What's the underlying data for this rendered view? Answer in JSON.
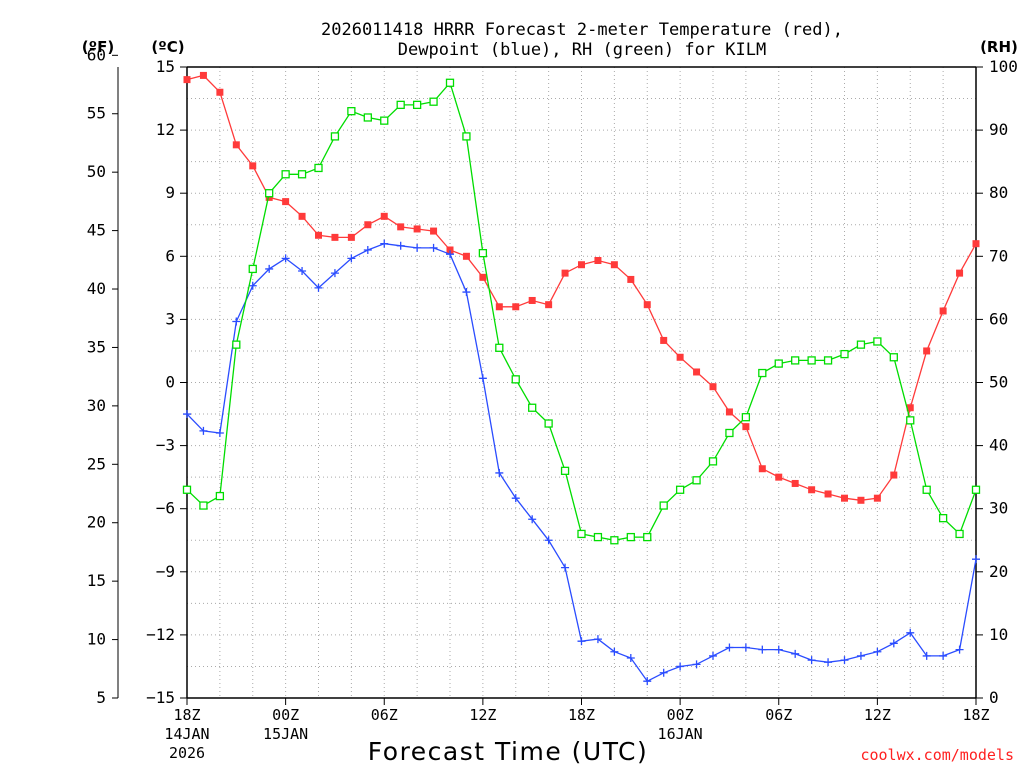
{
  "chart_data": {
    "type": "line",
    "title_line1": "2026011418 HRRR Forecast 2-meter Temperature (red),",
    "title_line2": "Dewpoint (blue), RH (green) for KILM",
    "xlabel": "Forecast Time (UTC)",
    "left_axis_f_label": "(ºF)",
    "left_axis_c_label": "(ºC)",
    "right_axis_label": "(RH)",
    "watermark": "coolwx.com/models",
    "colors": {
      "temperature": "#ff3a3a",
      "dewpoint": "#2a4cff",
      "rh": "#00dd00",
      "grid": "#aaaaaa",
      "axis": "#000000",
      "watermark": "#ff2020"
    },
    "xlim": [
      0,
      48
    ],
    "x_ticks": [
      {
        "x": 0,
        "label": "18Z",
        "sub1": "14JAN",
        "sub2": "2026"
      },
      {
        "x": 6,
        "label": "00Z",
        "sub1": "15JAN",
        "sub2": ""
      },
      {
        "x": 12,
        "label": "06Z",
        "sub1": "",
        "sub2": ""
      },
      {
        "x": 18,
        "label": "12Z",
        "sub1": "",
        "sub2": ""
      },
      {
        "x": 24,
        "label": "18Z",
        "sub1": "",
        "sub2": ""
      },
      {
        "x": 30,
        "label": "00Z",
        "sub1": "16JAN",
        "sub2": ""
      },
      {
        "x": 36,
        "label": "06Z",
        "sub1": "",
        "sub2": ""
      },
      {
        "x": 42,
        "label": "12Z",
        "sub1": "",
        "sub2": ""
      },
      {
        "x": 48,
        "label": "18Z",
        "sub1": "",
        "sub2": ""
      }
    ],
    "ylim_c": [
      -15,
      15
    ],
    "y_ticks_c": [
      {
        "v": 15,
        "label": "15"
      },
      {
        "v": 12,
        "label": "12"
      },
      {
        "v": 9,
        "label": "9"
      },
      {
        "v": 6,
        "label": "6"
      },
      {
        "v": 3,
        "label": "3"
      },
      {
        "v": 0,
        "label": "0"
      },
      {
        "v": -3,
        "label": "−3"
      },
      {
        "v": -6,
        "label": "−6"
      },
      {
        "v": -9,
        "label": "−9"
      },
      {
        "v": -12,
        "label": "−12"
      },
      {
        "v": -15,
        "label": "−15"
      }
    ],
    "y_ticks_f": [
      {
        "v": 60,
        "label": "60"
      },
      {
        "v": 55,
        "label": "55"
      },
      {
        "v": 50,
        "label": "50"
      },
      {
        "v": 45,
        "label": "45"
      },
      {
        "v": 40,
        "label": "40"
      },
      {
        "v": 35,
        "label": "35"
      },
      {
        "v": 30,
        "label": "30"
      },
      {
        "v": 25,
        "label": "25"
      },
      {
        "v": 20,
        "label": "20"
      },
      {
        "v": 15,
        "label": "15"
      },
      {
        "v": 10,
        "label": "10"
      },
      {
        "v": 5,
        "label": "5"
      }
    ],
    "ylim_rh": [
      0,
      100
    ],
    "y_ticks_rh": [
      {
        "v": 100,
        "label": "100"
      },
      {
        "v": 90,
        "label": "90"
      },
      {
        "v": 80,
        "label": "80"
      },
      {
        "v": 70,
        "label": "70"
      },
      {
        "v": 60,
        "label": "60"
      },
      {
        "v": 50,
        "label": "50"
      },
      {
        "v": 40,
        "label": "40"
      },
      {
        "v": 30,
        "label": "30"
      },
      {
        "v": 20,
        "label": "20"
      },
      {
        "v": 10,
        "label": "10"
      },
      {
        "v": 0,
        "label": "0"
      }
    ],
    "x": [
      0,
      1,
      2,
      3,
      4,
      5,
      6,
      7,
      8,
      9,
      10,
      11,
      12,
      13,
      14,
      15,
      16,
      17,
      18,
      19,
      20,
      21,
      22,
      23,
      24,
      25,
      26,
      27,
      28,
      29,
      30,
      31,
      32,
      33,
      34,
      35,
      36,
      37,
      38,
      39,
      40,
      41,
      42,
      43,
      44,
      45,
      46,
      47,
      48
    ],
    "series": [
      {
        "name": "Temperature",
        "axis": "C",
        "marker": "filled-square",
        "values": [
          14.4,
          14.6,
          13.8,
          11.3,
          10.3,
          8.8,
          8.6,
          7.9,
          7.0,
          6.9,
          6.9,
          7.5,
          7.9,
          7.4,
          7.3,
          7.2,
          6.3,
          6.0,
          5.0,
          3.6,
          3.6,
          3.9,
          3.7,
          5.2,
          5.6,
          5.8,
          5.6,
          4.9,
          3.7,
          2.0,
          1.2,
          0.5,
          -0.2,
          -1.4,
          -2.1,
          -4.1,
          -4.5,
          -4.8,
          -5.1,
          -5.3,
          -5.5,
          -5.6,
          -5.5,
          -4.4,
          -1.2,
          1.5,
          3.4,
          5.2,
          6.6
        ]
      },
      {
        "name": "Dewpoint",
        "axis": "C",
        "marker": "plus",
        "values": [
          -1.5,
          -2.3,
          -2.4,
          2.9,
          4.6,
          5.4,
          5.9,
          5.3,
          4.5,
          5.2,
          5.9,
          6.3,
          6.6,
          6.5,
          6.4,
          6.4,
          6.1,
          4.3,
          0.2,
          -4.3,
          -5.5,
          -6.5,
          -7.5,
          -8.8,
          -12.3,
          -12.2,
          -12.8,
          -13.1,
          -14.2,
          -13.8,
          -13.5,
          -13.4,
          -13.0,
          -12.6,
          -12.6,
          -12.7,
          -12.7,
          -12.9,
          -13.2,
          -13.3,
          -13.2,
          -13.0,
          -12.8,
          -12.4,
          -11.9,
          -13.0,
          -13.0,
          -12.7,
          -8.4
        ]
      },
      {
        "name": "Relative Humidity",
        "axis": "RH",
        "marker": "open-square",
        "values": [
          33,
          30.5,
          32,
          56,
          68,
          80,
          83,
          83,
          84,
          89,
          93,
          92,
          91.5,
          94,
          94,
          94.5,
          97.5,
          89,
          70.5,
          55.5,
          50.5,
          46,
          43.5,
          36,
          26,
          25.5,
          25,
          25.5,
          25.5,
          30.5,
          33,
          34.5,
          37.5,
          42,
          44.5,
          51.5,
          53,
          53.5,
          53.5,
          53.5,
          54.5,
          56,
          56.5,
          54,
          44,
          33,
          28.5,
          26,
          33
        ]
      }
    ]
  }
}
